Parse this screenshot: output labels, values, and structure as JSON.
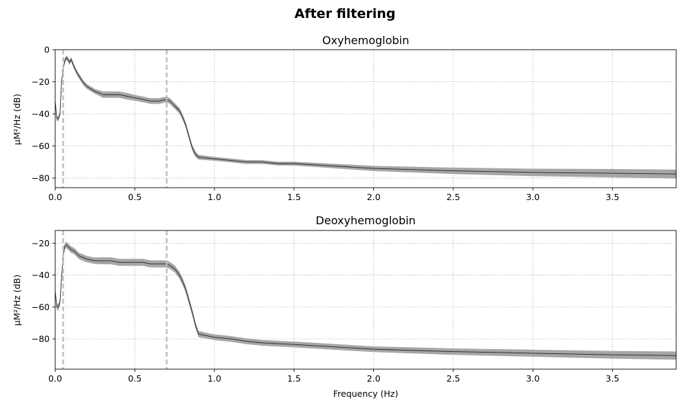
{
  "figure": {
    "suptitle": "After filtering"
  },
  "style": {
    "mean_color": "#222222",
    "band_color": "#a6a6a6",
    "marker_color": "#bfbfbf",
    "grid_color": "#b0b0b0",
    "axis_color": "#000000"
  },
  "chart_data": [
    {
      "type": "line",
      "title": "Oxyhemoglobin",
      "xlabel": "",
      "ylabel": "µM²/Hz (dB)",
      "xlim": [
        0.0,
        3.9
      ],
      "ylim": [
        -86,
        0
      ],
      "xticks": [
        0.0,
        0.5,
        1.0,
        1.5,
        2.0,
        2.5,
        3.0,
        3.5
      ],
      "xtick_labels": [
        "0.0",
        "0.5",
        "1.0",
        "1.5",
        "2.0",
        "2.5",
        "3.0",
        "3.5"
      ],
      "yticks": [
        0,
        -20,
        -40,
        -60,
        -80
      ],
      "ytick_labels": [
        "0",
        "−20",
        "−40",
        "−60",
        "−80"
      ],
      "grid": true,
      "filter_band_markers_hz": [
        0.05,
        0.7
      ],
      "series": [
        {
          "kind": "mean_with_band",
          "x": [
            0.0,
            0.01,
            0.02,
            0.03,
            0.04,
            0.05,
            0.06,
            0.07,
            0.08,
            0.09,
            0.1,
            0.12,
            0.14,
            0.16,
            0.18,
            0.2,
            0.25,
            0.3,
            0.35,
            0.4,
            0.45,
            0.5,
            0.55,
            0.6,
            0.65,
            0.7,
            0.72,
            0.75,
            0.78,
            0.8,
            0.82,
            0.84,
            0.86,
            0.88,
            0.9,
            1.0,
            1.1,
            1.2,
            1.3,
            1.4,
            1.5,
            1.75,
            2.0,
            2.5,
            3.0,
            3.5,
            3.9
          ],
          "mean": [
            -32,
            -43,
            -43,
            -40,
            -20,
            -12,
            -7,
            -5,
            -6,
            -8,
            -6,
            -11,
            -15,
            -18,
            -21,
            -23,
            -26,
            -28,
            -28,
            -28,
            -29,
            -30,
            -31,
            -32,
            -32,
            -31,
            -32,
            -35,
            -38,
            -42,
            -47,
            -54,
            -61,
            -65,
            -67,
            -68,
            -69,
            -70,
            -70,
            -71,
            -71,
            -72.5,
            -74,
            -75.5,
            -76.5,
            -77,
            -77.5
          ],
          "band": [
            1,
            1.5,
            1.5,
            1.5,
            1.5,
            1.5,
            1.5,
            1.5,
            1.5,
            1.5,
            1.5,
            1.5,
            1.5,
            1.5,
            1.5,
            1.5,
            1.5,
            2,
            2,
            2,
            2,
            1.8,
            1.8,
            1.8,
            1.8,
            1.8,
            1.8,
            1.8,
            1.8,
            1.8,
            1.8,
            1.8,
            1.8,
            1.8,
            1.5,
            1.2,
            1.2,
            1.2,
            1.2,
            1.2,
            1.2,
            1.4,
            1.6,
            2,
            2.3,
            2.6,
            2.8
          ]
        }
      ]
    },
    {
      "type": "line",
      "title": "Deoxyhemoglobin",
      "xlabel": "Frequency (Hz)",
      "ylabel": "µM²/Hz (dB)",
      "xlim": [
        0.0,
        3.9
      ],
      "ylim": [
        -99,
        -12
      ],
      "xticks": [
        0.0,
        0.5,
        1.0,
        1.5,
        2.0,
        2.5,
        3.0,
        3.5
      ],
      "xtick_labels": [
        "0.0",
        "0.5",
        "1.0",
        "1.5",
        "2.0",
        "2.5",
        "3.0",
        "3.5"
      ],
      "yticks": [
        -20,
        -40,
        -60,
        -80
      ],
      "ytick_labels": [
        "−20",
        "−40",
        "−60",
        "−80"
      ],
      "grid": true,
      "filter_band_markers_hz": [
        0.05,
        0.7
      ],
      "series": [
        {
          "kind": "mean_with_band",
          "x": [
            0.0,
            0.01,
            0.02,
            0.03,
            0.04,
            0.05,
            0.06,
            0.07,
            0.08,
            0.1,
            0.12,
            0.15,
            0.2,
            0.25,
            0.3,
            0.35,
            0.4,
            0.45,
            0.5,
            0.55,
            0.6,
            0.65,
            0.7,
            0.72,
            0.75,
            0.78,
            0.8,
            0.82,
            0.84,
            0.86,
            0.88,
            0.9,
            0.95,
            1.0,
            1.1,
            1.2,
            1.3,
            1.4,
            1.5,
            1.75,
            2.0,
            2.5,
            3.0,
            3.5,
            3.9
          ],
          "mean": [
            -50,
            -60,
            -60,
            -57,
            -42,
            -28,
            -22,
            -21,
            -22,
            -24,
            -25,
            -28,
            -30,
            -31,
            -31,
            -31,
            -32,
            -32,
            -32,
            -32,
            -33,
            -33,
            -33,
            -34,
            -36,
            -40,
            -44,
            -49,
            -56,
            -63,
            -71,
            -77,
            -78,
            -79,
            -80,
            -81.5,
            -82.5,
            -83,
            -83.5,
            -85,
            -86.5,
            -88,
            -89,
            -90,
            -90.5
          ],
          "band": [
            1.5,
            2,
            2,
            2,
            2,
            2,
            2,
            2,
            2,
            2,
            2,
            2,
            2,
            2,
            2.2,
            2.2,
            2.2,
            2.2,
            2.2,
            2.2,
            2.2,
            2.2,
            2.2,
            2.2,
            2.2,
            2.2,
            2.2,
            2.2,
            2.2,
            2.2,
            2,
            2,
            1.8,
            1.8,
            1.8,
            1.8,
            1.8,
            1.8,
            1.8,
            1.8,
            1.8,
            2,
            2.2,
            2.4,
            2.6
          ]
        }
      ]
    }
  ]
}
